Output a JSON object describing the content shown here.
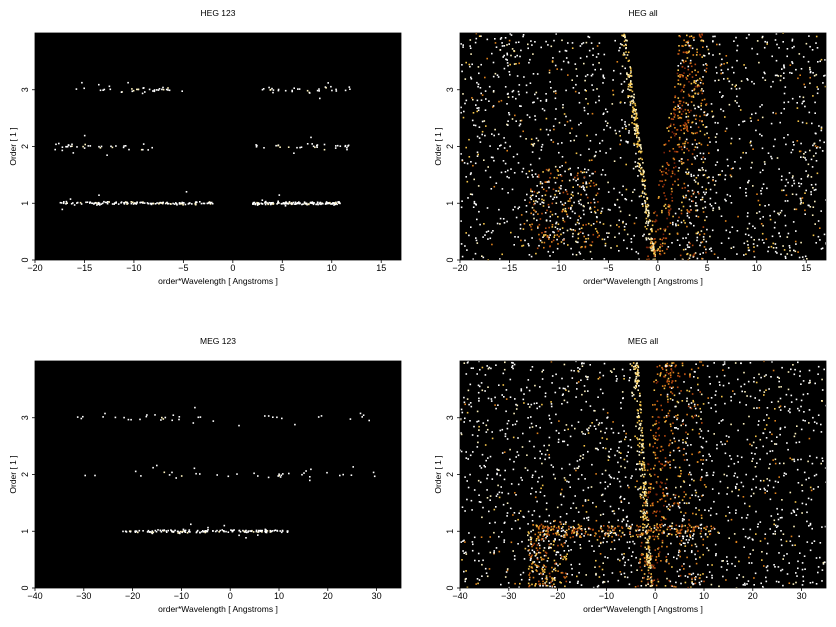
{
  "chart_data": [
    {
      "type": "heatmap",
      "title": "HEG 123",
      "xlabel": "order*Wavelength [ Angstroms ]",
      "ylabel": "Order [ 1 ]",
      "xlim": [
        -20,
        17
      ],
      "ylim": [
        0,
        4
      ],
      "xticks": [
        -20,
        -15,
        -10,
        -5,
        0,
        5,
        10,
        15
      ],
      "yticks": [
        0,
        1,
        2,
        3
      ],
      "background": "#000000",
      "colors": [
        "#ffffff",
        "#fff3c0",
        "#f7c64a",
        "#e0821c",
        "#b84a10",
        "#7a220a"
      ],
      "bands": [
        {
          "order": 1,
          "x_ranges": [
            [
              -17.5,
              -2
            ],
            [
              2,
              11
            ]
          ],
          "density": "high"
        },
        {
          "order": 2,
          "x_ranges": [
            [
              -18,
              -8
            ],
            [
              2,
              12
            ]
          ],
          "density": "low"
        },
        {
          "order": 3,
          "x_ranges": [
            [
              -16,
              -5
            ],
            [
              3,
              12
            ]
          ],
          "density": "low"
        }
      ]
    },
    {
      "type": "heatmap",
      "title": "HEG all",
      "xlabel": "order*Wavelength [ Angstroms ]",
      "ylabel": "Order [ 1 ]",
      "xlim": [
        -20,
        17
      ],
      "ylim": [
        0,
        4
      ],
      "xticks": [
        -20,
        -15,
        -10,
        -5,
        0,
        5,
        10,
        15
      ],
      "yticks": [
        0,
        1,
        2,
        3
      ],
      "background": "#000000",
      "colors": [
        "#ffffff",
        "#fff3c0",
        "#f7c64a",
        "#e0821c",
        "#b84a10",
        "#7a220a"
      ],
      "wedges": [
        {
          "side": "left",
          "x_at_top": -3.2,
          "x_at_bottom": -0.2
        },
        {
          "side": "right",
          "x_at_top": 4.8,
          "x_at_bottom": 0.8
        }
      ],
      "dense_regions": [
        {
          "x_range": [
            -13,
            -6
          ],
          "y_range": [
            0.2,
            1.6
          ]
        },
        {
          "x_range": [
            2,
            5
          ],
          "y_range": [
            0,
            4
          ]
        }
      ]
    },
    {
      "type": "heatmap",
      "title": "MEG 123",
      "xlabel": "order*Wavelength [ Angstroms ]",
      "ylabel": "Order [ 1 ]",
      "xlim": [
        -40,
        35
      ],
      "ylim": [
        0,
        4
      ],
      "xticks": [
        -40,
        -30,
        -20,
        -10,
        0,
        10,
        20,
        30
      ],
      "yticks": [
        0,
        1,
        2,
        3
      ],
      "background": "#000000",
      "colors": [
        "#ffffff",
        "#fff3c0",
        "#f7c64a",
        "#e0821c",
        "#b84a10",
        "#7a220a"
      ],
      "bands": [
        {
          "order": 1,
          "x_ranges": [
            [
              -22,
              12
            ]
          ],
          "density": "high"
        },
        {
          "order": 2,
          "x_ranges": [
            [
              -30,
              30
            ]
          ],
          "density": "low"
        },
        {
          "order": 3,
          "x_ranges": [
            [
              -32,
              30
            ]
          ],
          "density": "low"
        }
      ]
    },
    {
      "type": "heatmap",
      "title": "MEG all",
      "xlabel": "order*Wavelength [ Angstroms ]",
      "ylabel": "Order [ 1 ]",
      "xlim": [
        -40,
        35
      ],
      "ylim": [
        0,
        4
      ],
      "xticks": [
        -40,
        -30,
        -20,
        -10,
        0,
        10,
        20,
        30
      ],
      "yticks": [
        0,
        1,
        2,
        3
      ],
      "background": "#000000",
      "colors": [
        "#ffffff",
        "#fff3c0",
        "#f7c64a",
        "#e0821c",
        "#b84a10",
        "#7a220a"
      ],
      "wedges": [
        {
          "side": "left",
          "x_at_top": -3.5,
          "x_at_bottom": -0.5
        },
        {
          "side": "right",
          "x_at_top": 4.5,
          "x_at_bottom": 0.8
        }
      ],
      "dense_regions": [
        {
          "x_range": [
            -26,
            -18
          ],
          "y_range": [
            0,
            1.2
          ]
        },
        {
          "x_range": [
            -24,
            12
          ],
          "y_range": [
            0.9,
            1.1
          ]
        },
        {
          "x_range": [
            2,
            10
          ],
          "y_range": [
            0,
            4
          ]
        }
      ]
    }
  ]
}
